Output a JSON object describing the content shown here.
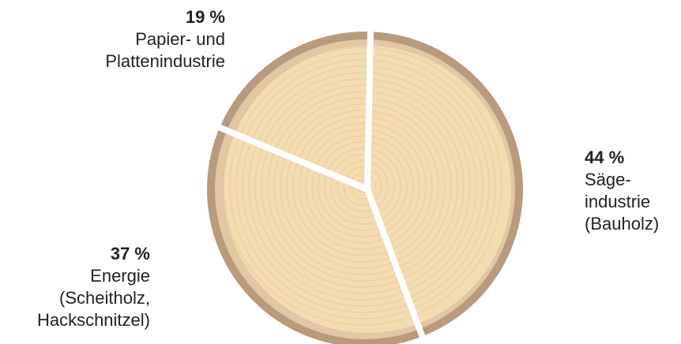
{
  "chart_data": {
    "type": "pie",
    "categories": [
      "Säge-\nindustrie\n(Bauholz)",
      "Energie\n(Scheitholz,\nHackschnitzel)",
      "Papier- und\nPlattenindustrie"
    ],
    "values": [
      44,
      37,
      19
    ],
    "value_labels": [
      "44 %",
      "37 %",
      "19 %"
    ],
    "color": "#f4dcb1"
  }
}
